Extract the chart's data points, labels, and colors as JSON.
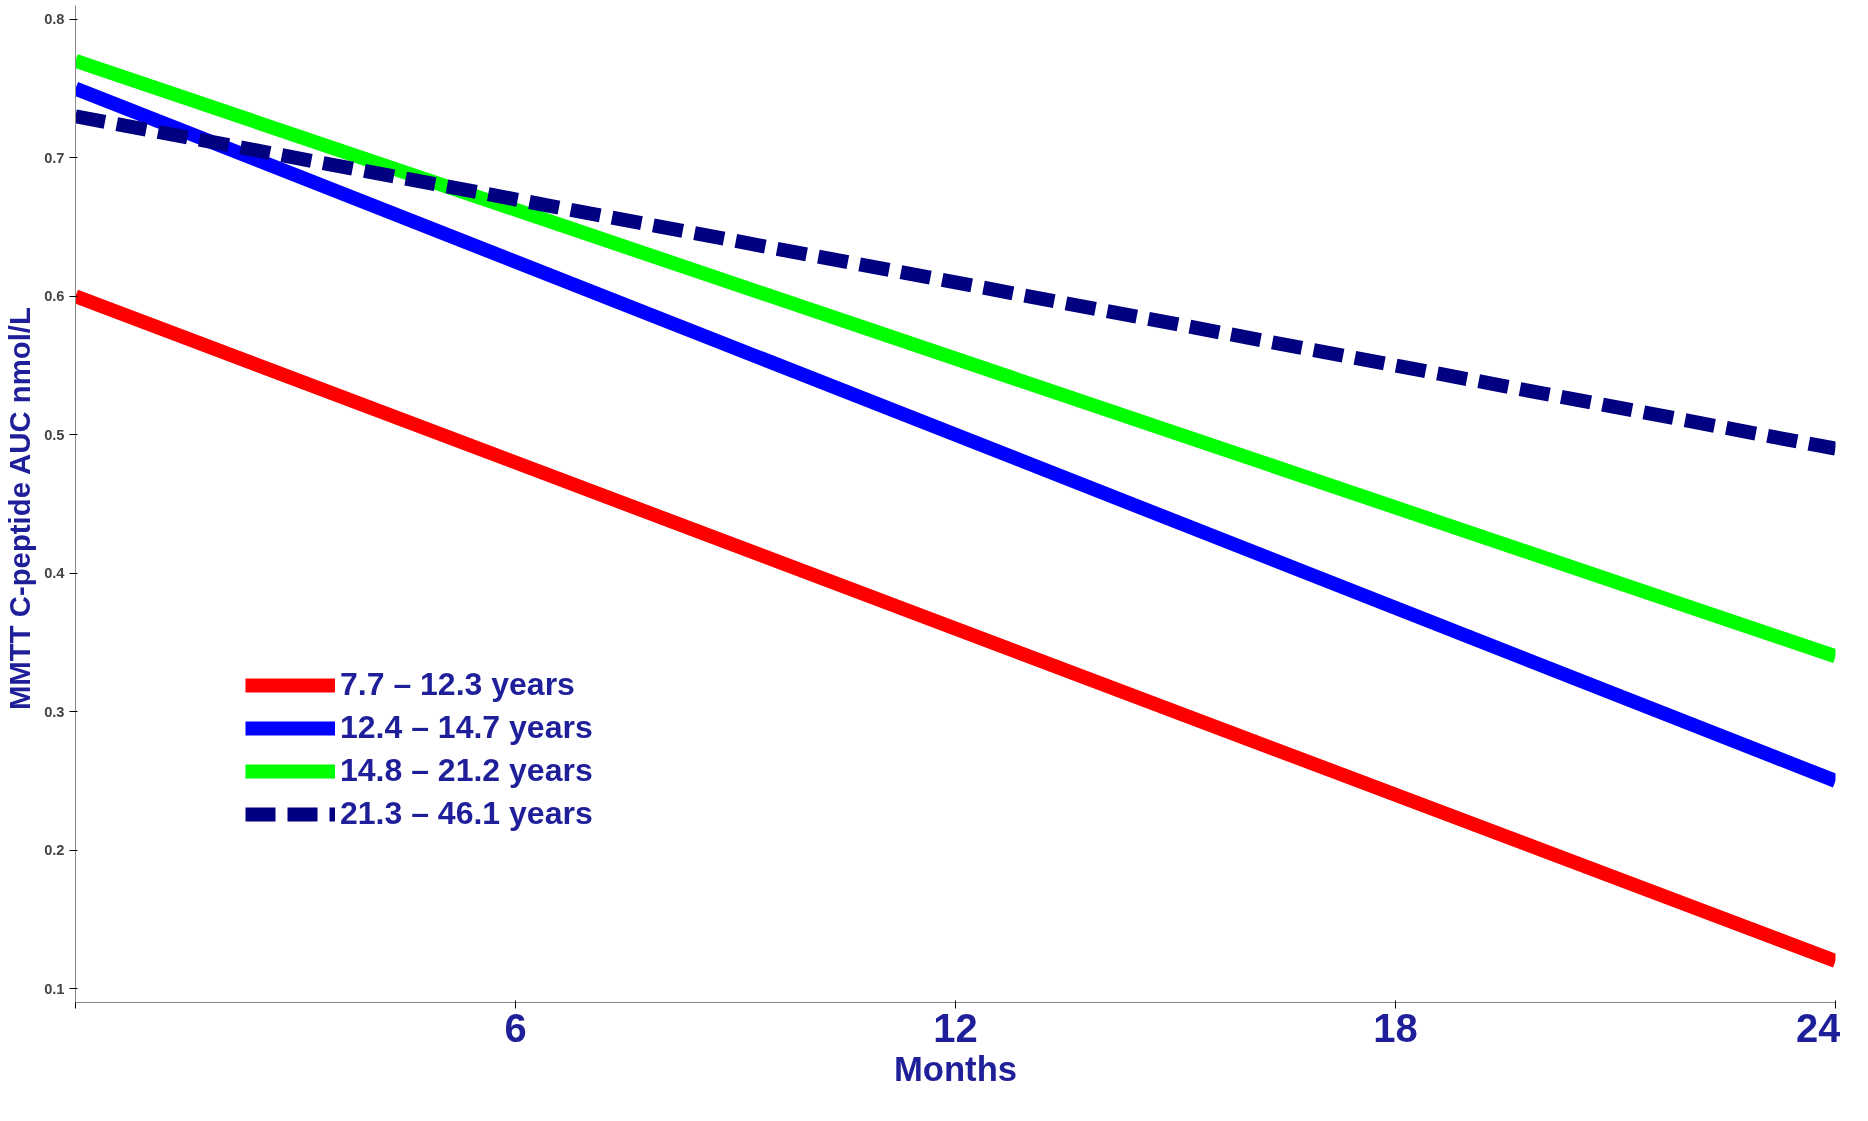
{
  "chart_data": {
    "type": "line",
    "xlabel": "Months",
    "ylabel": "MMTT  C-peptide AUC nmol/L",
    "x": [
      0,
      24
    ],
    "series": [
      {
        "name": "7.7 – 12.3 years",
        "color": "#ff0000",
        "values": [
          0.6,
          0.12
        ],
        "line_style": "solid"
      },
      {
        "name": "12.4 – 14.7 years",
        "color": "#0000ff",
        "values": [
          0.75,
          0.25
        ],
        "line_style": "solid"
      },
      {
        "name": "14.8 – 21.2 years",
        "color": "#00ff00",
        "values": [
          0.77,
          0.34
        ],
        "line_style": "solid"
      },
      {
        "name": "21.3 – 46.1 years",
        "color": "#000080",
        "values": [
          0.73,
          0.49
        ],
        "line_style": "dashed"
      }
    ],
    "xlim": [
      0,
      24
    ],
    "ylim": [
      0.09,
      0.81
    ],
    "xticks": [
      {
        "value": 0,
        "label": null
      },
      6,
      12,
      18,
      24
    ],
    "yticks": [
      0.1,
      0.2,
      0.3,
      0.4,
      0.5,
      0.6,
      0.7,
      0.8
    ],
    "grid": false,
    "legend": "bottom left",
    "marker": "none"
  }
}
